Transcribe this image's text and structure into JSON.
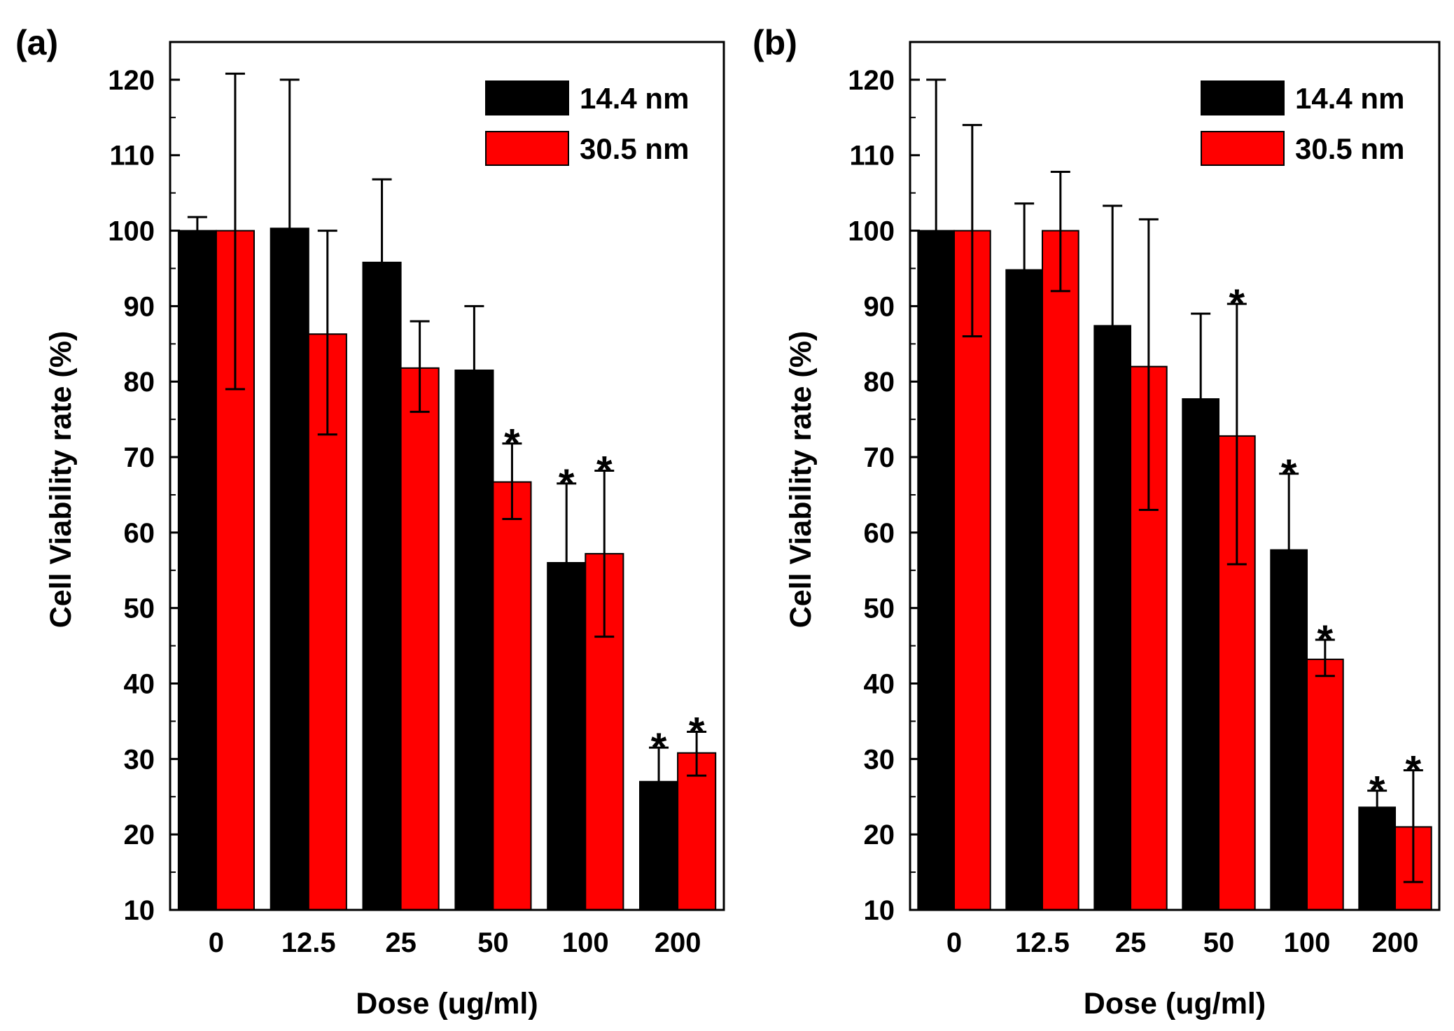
{
  "chart_data": [
    {
      "type": "bar",
      "panel_label": "(a)",
      "categories": [
        "0",
        "12.5",
        "25",
        "50",
        "100",
        "200"
      ],
      "xlabel": "Dose (ug/ml)",
      "ylabel": "Cell Viability rate (%)",
      "ylim": [
        10,
        125
      ],
      "yticks": [
        "10",
        "20",
        "30",
        "40",
        "50",
        "60",
        "70",
        "80",
        "90",
        "100",
        "110",
        "120"
      ],
      "legend_position": "top-right",
      "series": [
        {
          "name": "14.4 nm",
          "color": "#000000",
          "values": [
            100,
            100.3,
            95.8,
            81.5,
            56,
            27
          ],
          "error_high": [
            101.8,
            120,
            106.8,
            90,
            66.5,
            31.5
          ],
          "significant": [
            false,
            false,
            false,
            false,
            true,
            true
          ]
        },
        {
          "name": "30.5 nm",
          "color": "#ff0000",
          "values": [
            100,
            86.3,
            81.8,
            66.7,
            57.2,
            30.8
          ],
          "error_low": [
            79,
            73,
            76,
            61.8,
            46.2,
            27.8
          ],
          "error_high": [
            120.8,
            100,
            88,
            71.8,
            68.2,
            33.6
          ],
          "significant": [
            false,
            false,
            false,
            true,
            true,
            true
          ]
        }
      ],
      "annotation_symbol": "*"
    },
    {
      "type": "bar",
      "panel_label": "(b)",
      "categories": [
        "0",
        "12.5",
        "25",
        "50",
        "100",
        "200"
      ],
      "xlabel": "Dose (ug/ml)",
      "ylabel": "Cell Viability rate (%)",
      "ylim": [
        10,
        125
      ],
      "yticks": [
        "10",
        "20",
        "30",
        "40",
        "50",
        "60",
        "70",
        "80",
        "90",
        "100",
        "110",
        "120"
      ],
      "legend_position": "top-right",
      "series": [
        {
          "name": "14.4 nm",
          "color": "#000000",
          "values": [
            100,
            94.8,
            87.4,
            77.7,
            57.7,
            23.6
          ],
          "error_high": [
            120,
            103.6,
            103.3,
            89,
            67.8,
            25.8
          ],
          "significant": [
            false,
            false,
            false,
            false,
            true,
            true
          ]
        },
        {
          "name": "30.5 nm",
          "color": "#ff0000",
          "values": [
            100,
            100,
            82,
            72.8,
            43.2,
            21
          ],
          "error_low": [
            86,
            92,
            63,
            55.8,
            41,
            13.7
          ],
          "error_high": [
            114,
            107.8,
            101.5,
            90.3,
            45.8,
            28.5
          ],
          "significant": [
            false,
            false,
            false,
            true,
            true,
            true
          ]
        }
      ],
      "annotation_symbol": "*"
    }
  ]
}
